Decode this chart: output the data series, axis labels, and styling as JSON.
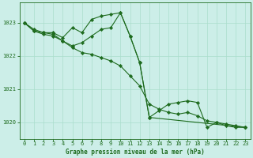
{
  "title": "Graphe pression niveau de la mer (hPa)",
  "background_color": "#cceee8",
  "grid_color": "#aaddcc",
  "line_color": "#1e6b1e",
  "marker_color": "#1e6b1e",
  "xlim": [
    -0.5,
    23.5
  ],
  "ylim": [
    1019.5,
    1023.6
  ],
  "yticks": [
    1020,
    1021,
    1022,
    1023
  ],
  "xticks": [
    0,
    1,
    2,
    3,
    4,
    5,
    6,
    7,
    8,
    9,
    10,
    11,
    12,
    13,
    14,
    15,
    16,
    17,
    18,
    19,
    20,
    21,
    22,
    23
  ],
  "series": [
    {
      "x": [
        0,
        1,
        2,
        3,
        4,
        5,
        6,
        7,
        8,
        9,
        10,
        11,
        12,
        13,
        14,
        15,
        16,
        17,
        18,
        19,
        20,
        21,
        22,
        23
      ],
      "y": [
        1023.0,
        1022.8,
        1022.7,
        1022.7,
        1022.55,
        1022.85,
        1022.7,
        1023.1,
        1023.2,
        1023.25,
        1023.3,
        1022.6,
        1021.8,
        1020.15,
        1020.35,
        1020.55,
        1020.6,
        1020.65,
        1020.6,
        1019.85,
        1020.0,
        1019.9,
        1019.85,
        1019.85
      ]
    },
    {
      "x": [
        0,
        1,
        2,
        3,
        4,
        5,
        6,
        7,
        8,
        9,
        10,
        11,
        12,
        13,
        23
      ],
      "y": [
        1023.0,
        1022.75,
        1022.7,
        1022.65,
        1022.45,
        1022.3,
        1022.4,
        1022.6,
        1022.8,
        1022.85,
        1023.3,
        1022.6,
        1021.8,
        1020.15,
        1019.85
      ]
    },
    {
      "x": [
        0,
        1,
        2,
        3,
        4,
        5,
        6,
        7,
        8,
        9,
        10,
        11,
        12,
        13,
        14,
        15,
        16,
        17,
        18,
        19,
        20,
        21,
        22,
        23
      ],
      "y": [
        1023.0,
        1022.75,
        1022.65,
        1022.6,
        1022.45,
        1022.25,
        1022.1,
        1022.05,
        1021.95,
        1021.85,
        1021.7,
        1021.4,
        1021.1,
        1020.55,
        1020.4,
        1020.3,
        1020.25,
        1020.3,
        1020.2,
        1020.05,
        1020.0,
        1019.95,
        1019.9,
        1019.85
      ]
    }
  ],
  "tick_fontsize": 5.0,
  "label_fontsize": 5.5,
  "linewidth": 0.8,
  "markersize": 2.2
}
